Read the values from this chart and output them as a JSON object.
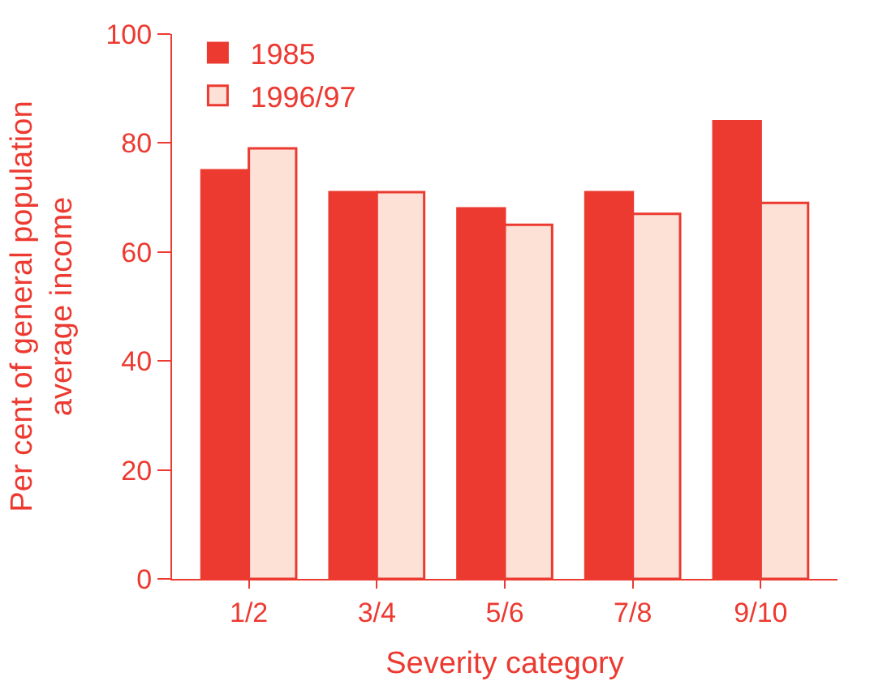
{
  "chart_data": {
    "type": "bar",
    "xlabel": "Severity category",
    "ylabel": "Per cent of general population\naverage income",
    "categories": [
      "1/2",
      "3/4",
      "5/6",
      "7/8",
      "9/10"
    ],
    "series": [
      {
        "name": "1985",
        "color": "#ec3a31",
        "values": [
          75,
          71,
          68,
          71,
          84
        ]
      },
      {
        "name": "1996/97",
        "color": "#fde0d6",
        "values": [
          79,
          71,
          65,
          67,
          69
        ]
      }
    ],
    "ylim": [
      0,
      100
    ],
    "yticks": [
      0,
      20,
      40,
      60,
      80,
      100
    ],
    "legend": "top left"
  }
}
